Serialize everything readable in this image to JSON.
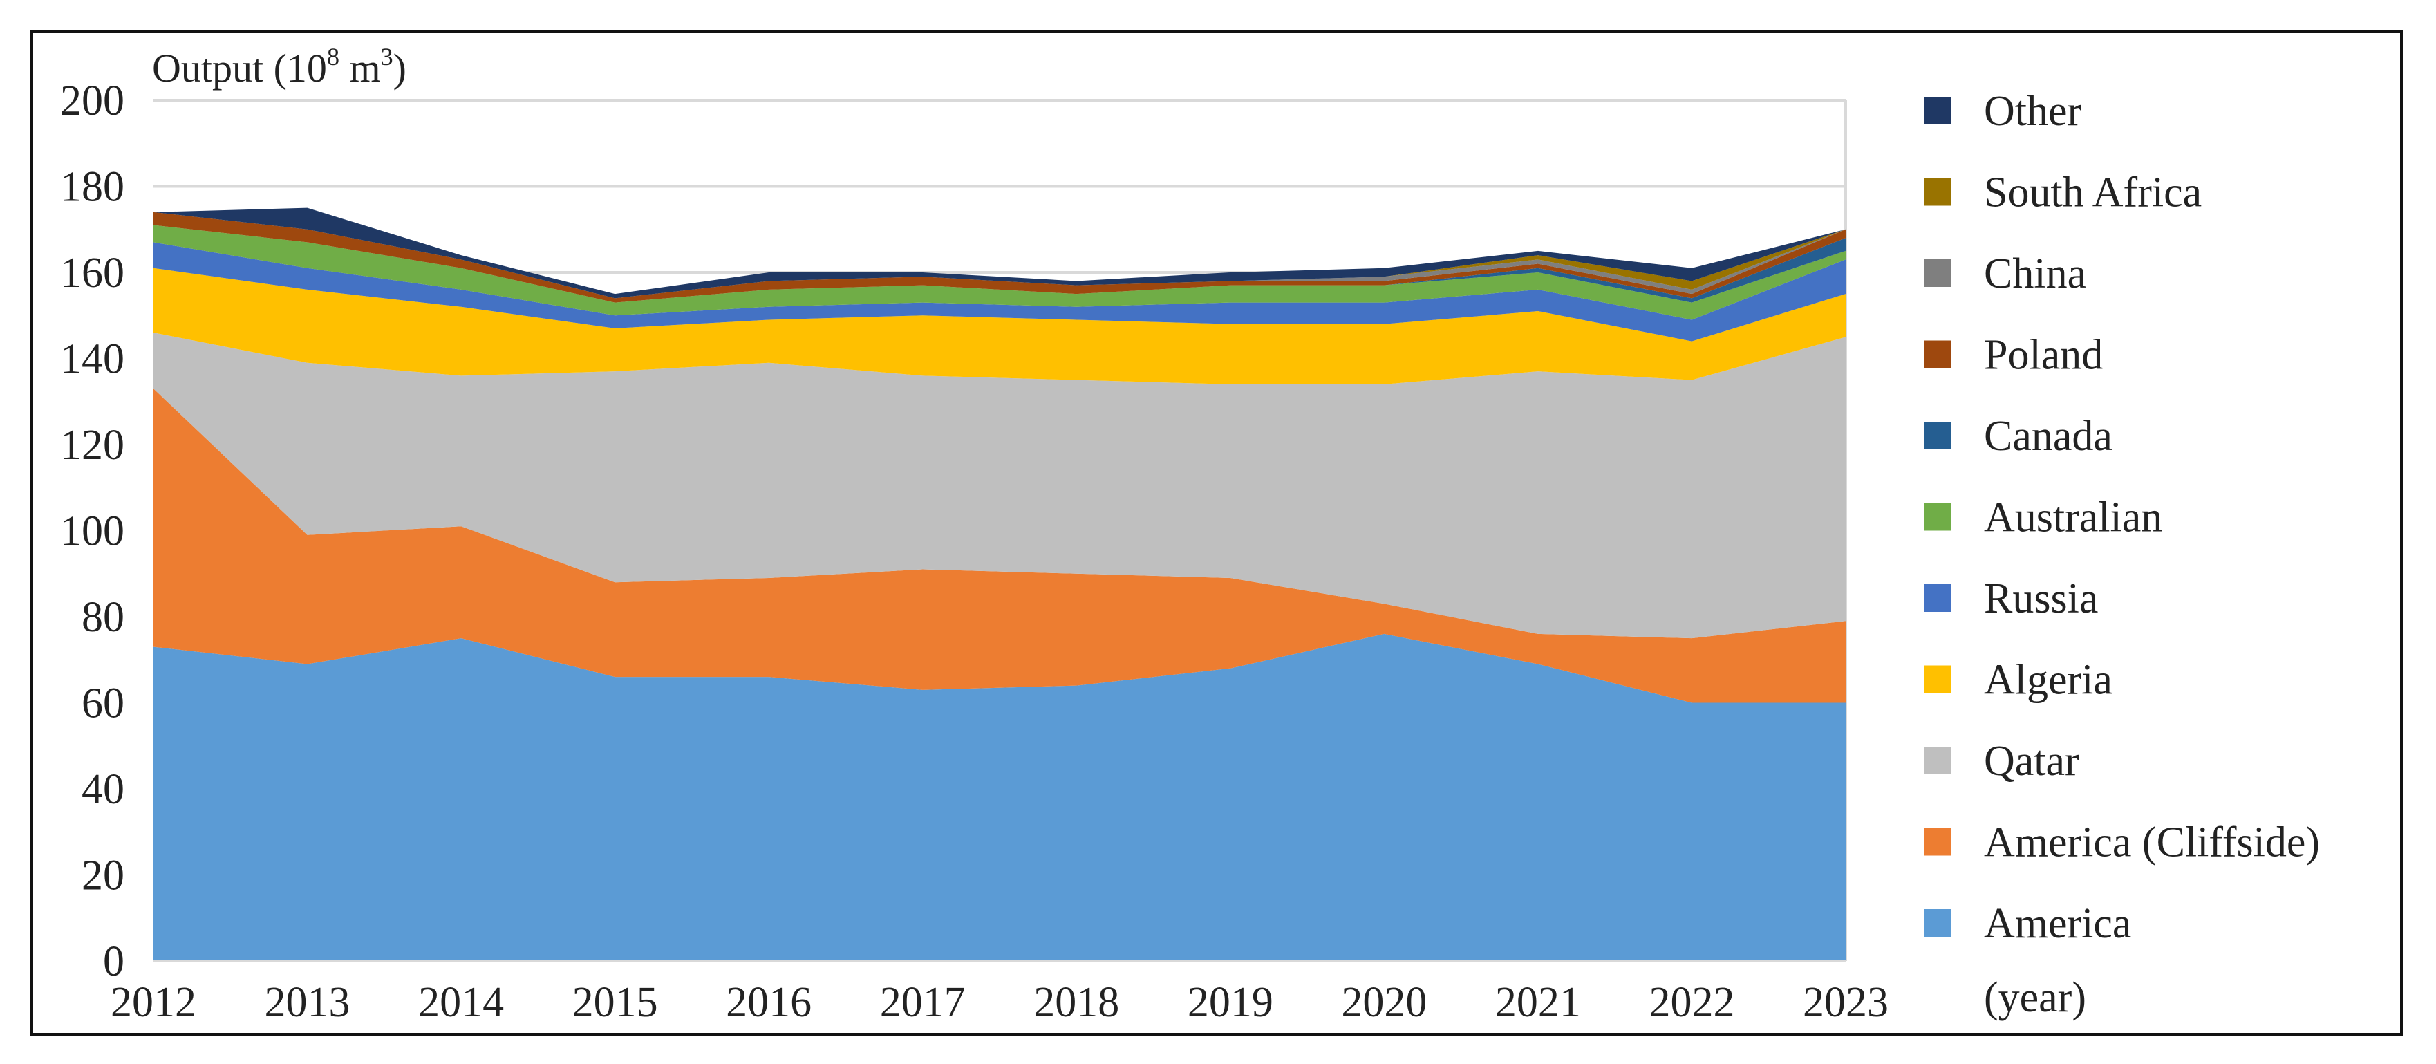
{
  "chart_data": {
    "type": "area",
    "stacked": true,
    "title": "",
    "ylabel": "Output (10",
    "ylabel_exp1": "8",
    "ylabel_mid": " m",
    "ylabel_exp2": "3",
    "ylabel_end": ")",
    "xlabel": "(year)",
    "ylim": [
      0,
      200
    ],
    "yticks": [
      0,
      20,
      40,
      60,
      80,
      100,
      120,
      140,
      160,
      180,
      200
    ],
    "grid": true,
    "legend_position": "right",
    "x": [
      "2012",
      "2013",
      "2014",
      "2015",
      "2016",
      "2017",
      "2018",
      "2019",
      "2020",
      "2021",
      "2022",
      "2023"
    ],
    "series": [
      {
        "name": "America",
        "color": "#5B9BD5",
        "values": [
          73,
          69,
          75,
          66,
          66,
          63,
          64,
          68,
          76,
          69,
          60,
          60
        ]
      },
      {
        "name": "America (Cliffside)",
        "color": "#ED7D31",
        "values": [
          60,
          30,
          26,
          22,
          23,
          28,
          26,
          21,
          7,
          7,
          15,
          19
        ]
      },
      {
        "name": "Qatar",
        "color": "#BFBFBF",
        "values": [
          13,
          40,
          35,
          49,
          50,
          45,
          45,
          45,
          51,
          61,
          60,
          66
        ]
      },
      {
        "name": "Algeria",
        "color": "#FFC000",
        "values": [
          15,
          17,
          16,
          10,
          10,
          14,
          14,
          14,
          14,
          14,
          9,
          10
        ]
      },
      {
        "name": "Russia",
        "color": "#4472C4",
        "values": [
          6,
          5,
          4,
          3,
          3,
          3,
          3,
          5,
          5,
          5,
          5,
          8
        ]
      },
      {
        "name": "Australian",
        "color": "#70AD47",
        "values": [
          4,
          6,
          5,
          3,
          4,
          4,
          3,
          4,
          4,
          4,
          4,
          2
        ]
      },
      {
        "name": "Canada",
        "color": "#255E91",
        "values": [
          0,
          0,
          0,
          0,
          0,
          0,
          0,
          0,
          0,
          1,
          1,
          3
        ]
      },
      {
        "name": "Poland",
        "color": "#9E480E",
        "values": [
          3,
          3,
          2,
          1,
          2,
          2,
          2,
          1,
          1,
          1,
          1,
          2
        ]
      },
      {
        "name": "China",
        "color": "#7F7F7F",
        "values": [
          0,
          0,
          0,
          0,
          0,
          0,
          0,
          0,
          1,
          1,
          1,
          0
        ]
      },
      {
        "name": "South Africa",
        "color": "#997300",
        "values": [
          0,
          0,
          0,
          0,
          0,
          0,
          0,
          0,
          0,
          1,
          2,
          0
        ]
      },
      {
        "name": "Other",
        "color": "#1F3864",
        "values": [
          0,
          5,
          1,
          1,
          2,
          1,
          1,
          2,
          2,
          1,
          3,
          0
        ]
      }
    ]
  }
}
